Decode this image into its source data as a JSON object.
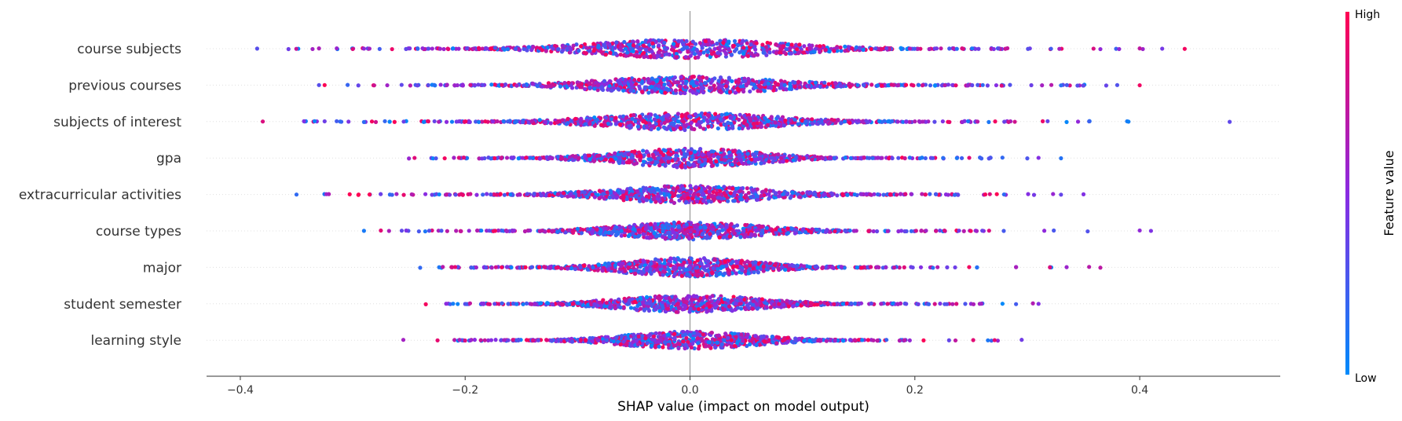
{
  "chart_data": {
    "type": "scatter",
    "subtype": "shap-beeswarm",
    "title": "",
    "xlabel": "SHAP value (impact on model output)",
    "ylabel": "",
    "xlim": [
      -0.43,
      0.525
    ],
    "x_ticks": [
      -0.4,
      -0.2,
      0.0,
      0.2,
      0.4
    ],
    "x_tick_labels": [
      "−0.4",
      "−0.2",
      "0.0",
      "0.2",
      "0.4"
    ],
    "grid": false,
    "zero_line": true,
    "colorbar": {
      "title": "Feature value",
      "high_label": "High",
      "low_label": "Low",
      "high_color": "#ff0052",
      "mid_color": "#8a2be2",
      "low_color": "#008bfb"
    },
    "features": [
      {
        "name": "course subjects",
        "min": -0.385,
        "max": 0.44,
        "spread": 0.115,
        "max_halfwidth": 12,
        "outliers": [
          -0.385,
          -0.33,
          -0.3,
          -0.29,
          -0.265,
          0.365,
          0.4,
          0.42,
          0.44
        ]
      },
      {
        "name": "previous courses",
        "min": -0.33,
        "max": 0.4,
        "spread": 0.11,
        "max_halfwidth": 11,
        "outliers": [
          -0.33,
          -0.325,
          -0.295,
          0.33,
          0.35,
          0.38,
          0.4
        ]
      },
      {
        "name": "subjects of interest",
        "min": -0.38,
        "max": 0.48,
        "spread": 0.105,
        "max_halfwidth": 11,
        "outliers": [
          -0.38,
          -0.325,
          -0.29,
          0.335,
          0.355,
          0.39,
          0.48
        ]
      },
      {
        "name": "gpa",
        "min": -0.25,
        "max": 0.33,
        "spread": 0.085,
        "max_halfwidth": 12,
        "outliers": [
          -0.25,
          -0.245,
          0.3,
          0.31,
          0.33
        ]
      },
      {
        "name": "extracurricular activities",
        "min": -0.35,
        "max": 0.35,
        "spread": 0.095,
        "max_halfwidth": 11,
        "outliers": [
          -0.35,
          -0.285,
          -0.265,
          0.33,
          0.35
        ]
      },
      {
        "name": "course types",
        "min": -0.29,
        "max": 0.41,
        "spread": 0.085,
        "max_halfwidth": 11,
        "outliers": [
          -0.29,
          -0.275,
          0.26,
          0.4,
          0.41
        ]
      },
      {
        "name": "major",
        "min": -0.24,
        "max": 0.365,
        "spread": 0.08,
        "max_halfwidth": 12,
        "outliers": [
          -0.24,
          0.29,
          0.335,
          0.355,
          0.365
        ]
      },
      {
        "name": "student semester",
        "min": -0.235,
        "max": 0.31,
        "spread": 0.085,
        "max_halfwidth": 11,
        "outliers": [
          -0.235,
          0.29,
          0.305,
          0.31
        ]
      },
      {
        "name": "learning style",
        "min": -0.255,
        "max": 0.295,
        "spread": 0.08,
        "max_halfwidth": 11,
        "outliers": [
          -0.255,
          -0.2,
          0.265,
          0.295
        ]
      }
    ]
  }
}
